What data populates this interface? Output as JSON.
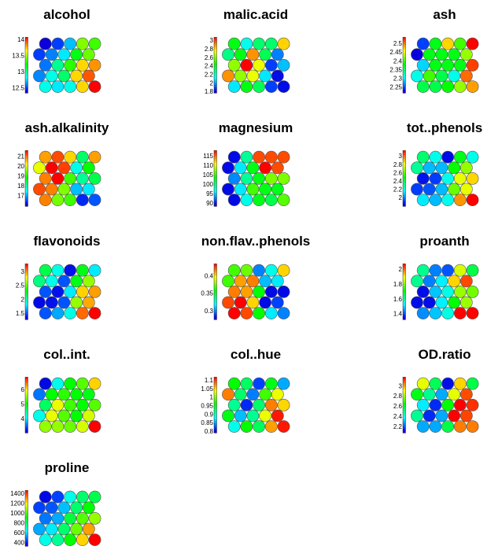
{
  "chart_data": [
    {
      "type": "heatmap",
      "title": "alcohol",
      "range": [
        12.34,
        14.07
      ],
      "ticks": [
        12.5,
        13,
        13.5,
        14
      ],
      "values": [
        [
          12.39,
          12.51,
          12.72,
          13.45,
          13.34
        ],
        [
          12.51,
          12.62,
          12.79,
          13.21,
          13.41
        ],
        [
          12.6,
          13.0,
          13.31,
          13.72,
          13.83
        ],
        [
          12.63,
          12.86,
          13.07,
          13.72,
          13.93
        ],
        [
          12.86,
          12.79,
          12.86,
          13.72,
          14.07
        ]
      ]
    },
    {
      "type": "heatmap",
      "title": "malic.acid",
      "range": [
        1.76,
        3.07
      ],
      "ticks": [
        1.8,
        2,
        2.2,
        2.4,
        2.6,
        2.8,
        3
      ],
      "values": [
        [
          2.42,
          2.15,
          2.31,
          2.31,
          2.81
        ],
        [
          2.28,
          2.42,
          2.89,
          2.34,
          1.97
        ],
        [
          2.62,
          3.07,
          2.73,
          1.89,
          2.05
        ],
        [
          2.89,
          2.62,
          2.73,
          2.1,
          1.83
        ],
        [
          2.1,
          2.42,
          2.34,
          1.89,
          1.83
        ]
      ]
    },
    {
      "type": "heatmap",
      "title": "ash",
      "range": [
        2.216,
        2.535
      ],
      "ticks": [
        2.25,
        2.3,
        2.35,
        2.4,
        2.45,
        2.5
      ],
      "values": [
        [
          2.248,
          2.376,
          2.471,
          2.401,
          2.535
        ],
        [
          2.226,
          2.376,
          2.376,
          2.376,
          2.427
        ],
        [
          2.293,
          2.376,
          2.376,
          2.376,
          2.516
        ],
        [
          2.312,
          2.401,
          2.36,
          2.312,
          2.503
        ],
        [
          2.36,
          2.36,
          2.382,
          2.427,
          2.487
        ]
      ]
    },
    {
      "type": "heatmap",
      "title": "ash.alkalinity",
      "range": [
        15.88,
        21.56
      ],
      "ticks": [
        17,
        18,
        19,
        20,
        21
      ],
      "values": [
        [
          20.71,
          21.16,
          20.42,
          18.27,
          20.71
        ],
        [
          20.08,
          21.56,
          21.22,
          17.58,
          18.83
        ],
        [
          20.88,
          21.56,
          19.17,
          18.04,
          18.44
        ],
        [
          21.16,
          20.88,
          19.52,
          17.13,
          17.36
        ],
        [
          20.88,
          19.46,
          19.17,
          16.33,
          16.56
        ]
      ]
    },
    {
      "type": "heatmap",
      "title": "magnesium",
      "range": [
        88.2,
        117.8
      ],
      "ticks": [
        90,
        95,
        100,
        105,
        110,
        115
      ],
      "values": [
        [
          89.7,
          99.4,
          115.7,
          115.7,
          115.7
        ],
        [
          89.7,
          95.9,
          103.0,
          117.8,
          115.7
        ],
        [
          93.2,
          99.4,
          103.0,
          107.1,
          107.1
        ],
        [
          89.7,
          95.9,
          105.4,
          103.0,
          103.0
        ],
        [
          89.7,
          97.1,
          103.0,
          101.5,
          106.0
        ]
      ]
    },
    {
      "type": "heatmap",
      "title": "tot..phenols",
      "range": [
        1.79,
        3.13
      ],
      "ticks": [
        2,
        2.2,
        2.4,
        2.6,
        2.8,
        3
      ],
      "values": [
        [
          2.35,
          2.19,
          1.86,
          2.46,
          2.19
        ],
        [
          2.3,
          2.08,
          2.08,
          2.49,
          2.67
        ],
        [
          1.87,
          1.92,
          2.19,
          2.78,
          2.86
        ],
        [
          1.92,
          1.95,
          2.08,
          2.62,
          2.78
        ],
        [
          2.14,
          2.08,
          2.19,
          2.94,
          3.13
        ]
      ]
    },
    {
      "type": "heatmap",
      "title": "flavonoids",
      "range": [
        1.26,
        3.28
      ],
      "ticks": [
        1.5,
        2,
        2.5,
        3
      ],
      "values": [
        [
          2.17,
          1.87,
          1.38,
          2.27,
          1.79
        ],
        [
          2.07,
          1.87,
          1.5,
          2.27,
          2.59
        ],
        [
          1.5,
          1.38,
          1.79,
          2.88,
          2.98
        ],
        [
          1.36,
          1.38,
          1.5,
          2.59,
          2.96
        ],
        [
          1.5,
          1.66,
          1.87,
          3.08,
          3.28
        ]
      ]
    },
    {
      "type": "heatmap",
      "title": "non.flav..phenols",
      "range": [
        0.274,
        0.434
      ],
      "ticks": [
        0.3,
        0.35,
        0.4
      ],
      "values": [
        [
          0.367,
          0.373,
          0.3,
          0.322,
          0.402
        ],
        [
          0.367,
          0.41,
          0.415,
          0.309,
          0.316
        ],
        [
          0.415,
          0.41,
          0.357,
          0.282,
          0.282
        ],
        [
          0.423,
          0.434,
          0.402,
          0.282,
          0.29
        ],
        [
          0.434,
          0.423,
          0.357,
          0.316,
          0.3
        ]
      ]
    },
    {
      "type": "heatmap",
      "title": "proanth",
      "range": [
        1.32,
        2.07
      ],
      "ticks": [
        1.4,
        1.6,
        1.8,
        2
      ],
      "values": [
        [
          1.61,
          1.44,
          1.41,
          1.86,
          1.66
        ],
        [
          1.61,
          1.44,
          1.52,
          1.92,
          2.02
        ],
        [
          1.36,
          1.49,
          1.55,
          1.82,
          1.79
        ],
        [
          1.36,
          1.36,
          1.52,
          1.71,
          1.82
        ],
        [
          1.45,
          1.49,
          1.55,
          2.07,
          2.07
        ]
      ]
    },
    {
      "type": "heatmap",
      "title": "col..int.",
      "range": [
        2.99,
        6.86
      ],
      "ticks": [
        4,
        5,
        6
      ],
      "values": [
        [
          3.18,
          4.15,
          5.0,
          5.31,
          6.09
        ],
        [
          3.57,
          5.0,
          5.16,
          5.0,
          4.93
        ],
        [
          4.65,
          5.85,
          5.23,
          5.0,
          5.31
        ],
        [
          4.15,
          5.85,
          5.31,
          5.0,
          5.78
        ],
        [
          5.54,
          5.54,
          5.39,
          5.78,
          6.86
        ]
      ]
    },
    {
      "type": "heatmap",
      "title": "col..hue",
      "range": [
        0.789,
        1.117
      ],
      "ticks": [
        0.8,
        0.85,
        0.9,
        0.95,
        1,
        1.05,
        1.1
      ],
      "values": [
        [
          0.96,
          0.93,
          0.822,
          0.953,
          0.855
        ],
        [
          1.078,
          0.927,
          0.841,
          0.979,
          1.032
        ],
        [
          0.914,
          0.815,
          0.927,
          1.078,
          1.051
        ],
        [
          0.953,
          0.861,
          0.914,
          1.032,
          1.11
        ],
        [
          0.887,
          0.96,
          0.933,
          1.068,
          1.11
        ]
      ]
    },
    {
      "type": "heatmap",
      "title": "OD.ratio",
      "range": [
        2.07,
        3.17
      ],
      "ticks": [
        2.2,
        2.4,
        2.6,
        2.8,
        3
      ],
      "values": [
        [
          2.88,
          2.55,
          2.13,
          2.95,
          2.57
        ],
        [
          2.62,
          2.49,
          2.29,
          2.88,
          3.09
        ],
        [
          2.36,
          2.16,
          2.64,
          3.17,
          3.12
        ],
        [
          2.49,
          2.16,
          2.29,
          3.17,
          3.1
        ],
        [
          2.29,
          2.29,
          2.57,
          3.04,
          3.04
        ]
      ]
    },
    {
      "type": "heatmap",
      "title": "proline",
      "range": [
        327,
        1459
      ],
      "ticks": [
        400,
        600,
        800,
        1000,
        1200,
        1400
      ],
      "values": [
        [
          384,
          440,
          667,
          802,
          836
        ],
        [
          440,
          463,
          576,
          802,
          916
        ],
        [
          497,
          553,
          848,
          1006,
          1074
        ],
        [
          553,
          621,
          802,
          1029,
          1289
        ],
        [
          667,
          757,
          916,
          1233,
          1459
        ]
      ]
    }
  ],
  "colormap": "blue-cyan-green-yellow-red",
  "cell_border_color": "#555555"
}
